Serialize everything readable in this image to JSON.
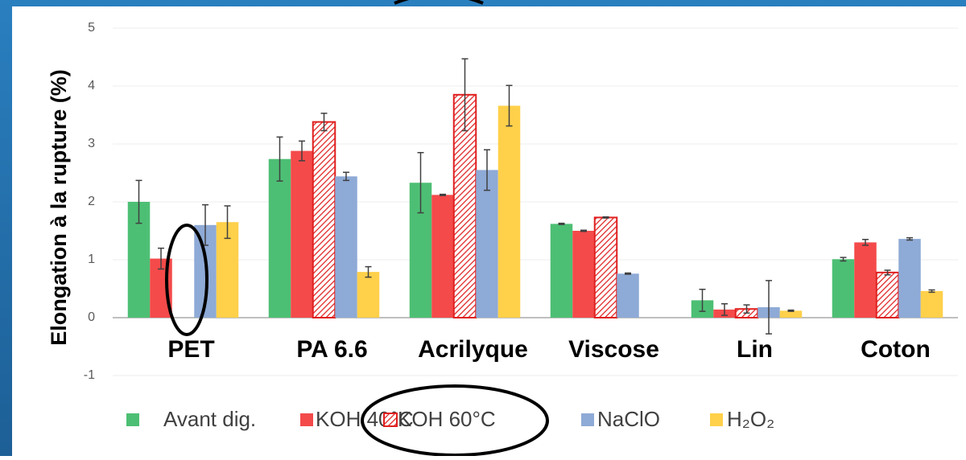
{
  "chart_data": {
    "type": "bar",
    "y_label": "Elongation à la rupture (%)",
    "categories": [
      "PET",
      "PA 6.6",
      "Acrilyque",
      "Viscose",
      "Lin",
      "Coton"
    ],
    "series": [
      {
        "name": "Avant dig.",
        "color": "#4dbf74",
        "values": [
          2.0,
          2.74,
          2.33,
          1.62,
          0.3,
          1.01
        ],
        "errors": [
          0.37,
          0.38,
          0.52,
          0.01,
          0.19,
          0.03
        ]
      },
      {
        "name": "KOH 40°C",
        "color": "#f44a4a",
        "values": [
          1.02,
          2.88,
          2.12,
          1.5,
          0.14,
          1.3
        ],
        "errors": [
          0.18,
          0.17,
          0.01,
          0.01,
          0.1,
          0.05
        ]
      },
      {
        "name": "KOH 60°C",
        "color": "#e02020",
        "hatched": true,
        "values": [
          null,
          3.38,
          3.85,
          1.73,
          0.15,
          0.78
        ],
        "errors": [
          null,
          0.15,
          0.62,
          0.01,
          0.07,
          0.04
        ]
      },
      {
        "name": "NaClO",
        "color": "#8eaad6",
        "values": [
          1.6,
          2.44,
          2.55,
          0.76,
          0.18,
          1.36
        ],
        "errors": [
          0.35,
          0.07,
          0.35,
          0.01,
          0.46,
          0.02
        ]
      },
      {
        "name": "H₂O₂",
        "color": "#ffd04a",
        "values": [
          1.65,
          0.79,
          3.66,
          null,
          0.12,
          0.46
        ],
        "errors": [
          0.28,
          0.09,
          0.35,
          null,
          0.01,
          0.02
        ]
      }
    ],
    "ylim": [
      -1,
      5
    ],
    "yticks": [
      -1,
      0,
      1,
      2,
      3,
      4,
      5
    ],
    "grid": true
  }
}
